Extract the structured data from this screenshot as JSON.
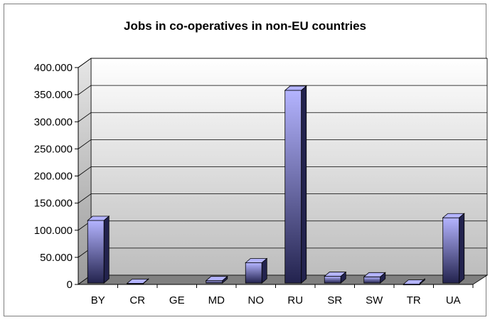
{
  "chart_data": {
    "type": "bar",
    "title": "Jobs in co-operatives in non-EU countries",
    "xlabel": "",
    "ylabel": "",
    "categories": [
      "BY",
      "CR",
      "GE",
      "MD",
      "NO",
      "RU",
      "SR",
      "SW",
      "TR",
      "UA"
    ],
    "values": [
      118000,
      2000,
      0,
      7000,
      40000,
      358000,
      15000,
      14000,
      500,
      123000
    ],
    "ylim": [
      0,
      400000
    ],
    "yticks": [
      0,
      50000,
      100000,
      150000,
      200000,
      250000,
      300000,
      350000,
      400000
    ],
    "ytick_labels": [
      "0",
      "50.000",
      "100.000",
      "150.000",
      "200.000",
      "250.000",
      "300.000",
      "350.000",
      "400.000"
    ],
    "grid": true,
    "legend": "none",
    "style": "3d-column",
    "colors": {
      "bar_light": "#b4b4ff",
      "bar_dark": "#23234e",
      "wall_light": "#ffffff",
      "wall_dark": "#bfbfbf",
      "floor": "#808080"
    }
  }
}
